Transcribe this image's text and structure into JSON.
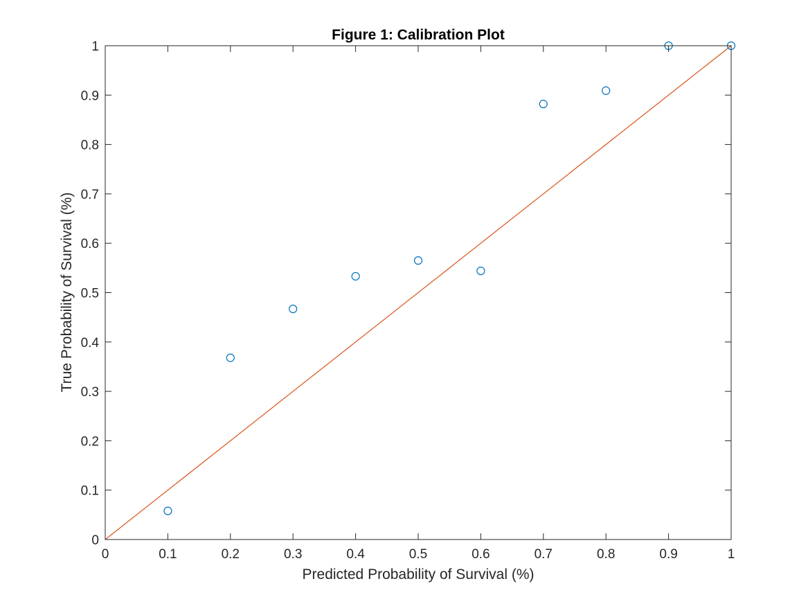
{
  "chart_data": {
    "type": "scatter",
    "title": "Figure 1: Calibration Plot",
    "xlabel": "Predicted Probability of Survival (%)",
    "ylabel": "True Probability of Survival (%)",
    "xlim": [
      0,
      1
    ],
    "ylim": [
      0,
      1
    ],
    "xticks": [
      "0",
      "0.1",
      "0.2",
      "0.3",
      "0.4",
      "0.5",
      "0.6",
      "0.7",
      "0.8",
      "0.9",
      "1"
    ],
    "yticks": [
      "0",
      "0.1",
      "0.2",
      "0.3",
      "0.4",
      "0.5",
      "0.6",
      "0.7",
      "0.8",
      "0.9",
      "1"
    ],
    "grid": false,
    "series": [
      {
        "type": "scatter",
        "marker": "open-circle",
        "color": "#0072BD",
        "x": [
          0.1,
          0.2,
          0.3,
          0.4,
          0.5,
          0.6,
          0.7,
          0.8,
          0.9,
          1.0
        ],
        "y": [
          0.058,
          0.368,
          0.467,
          0.533,
          0.565,
          0.544,
          0.882,
          0.909,
          1.0,
          1.0
        ]
      },
      {
        "type": "line",
        "color": "#D95319",
        "x": [
          0,
          1
        ],
        "y": [
          0,
          1
        ]
      }
    ]
  }
}
